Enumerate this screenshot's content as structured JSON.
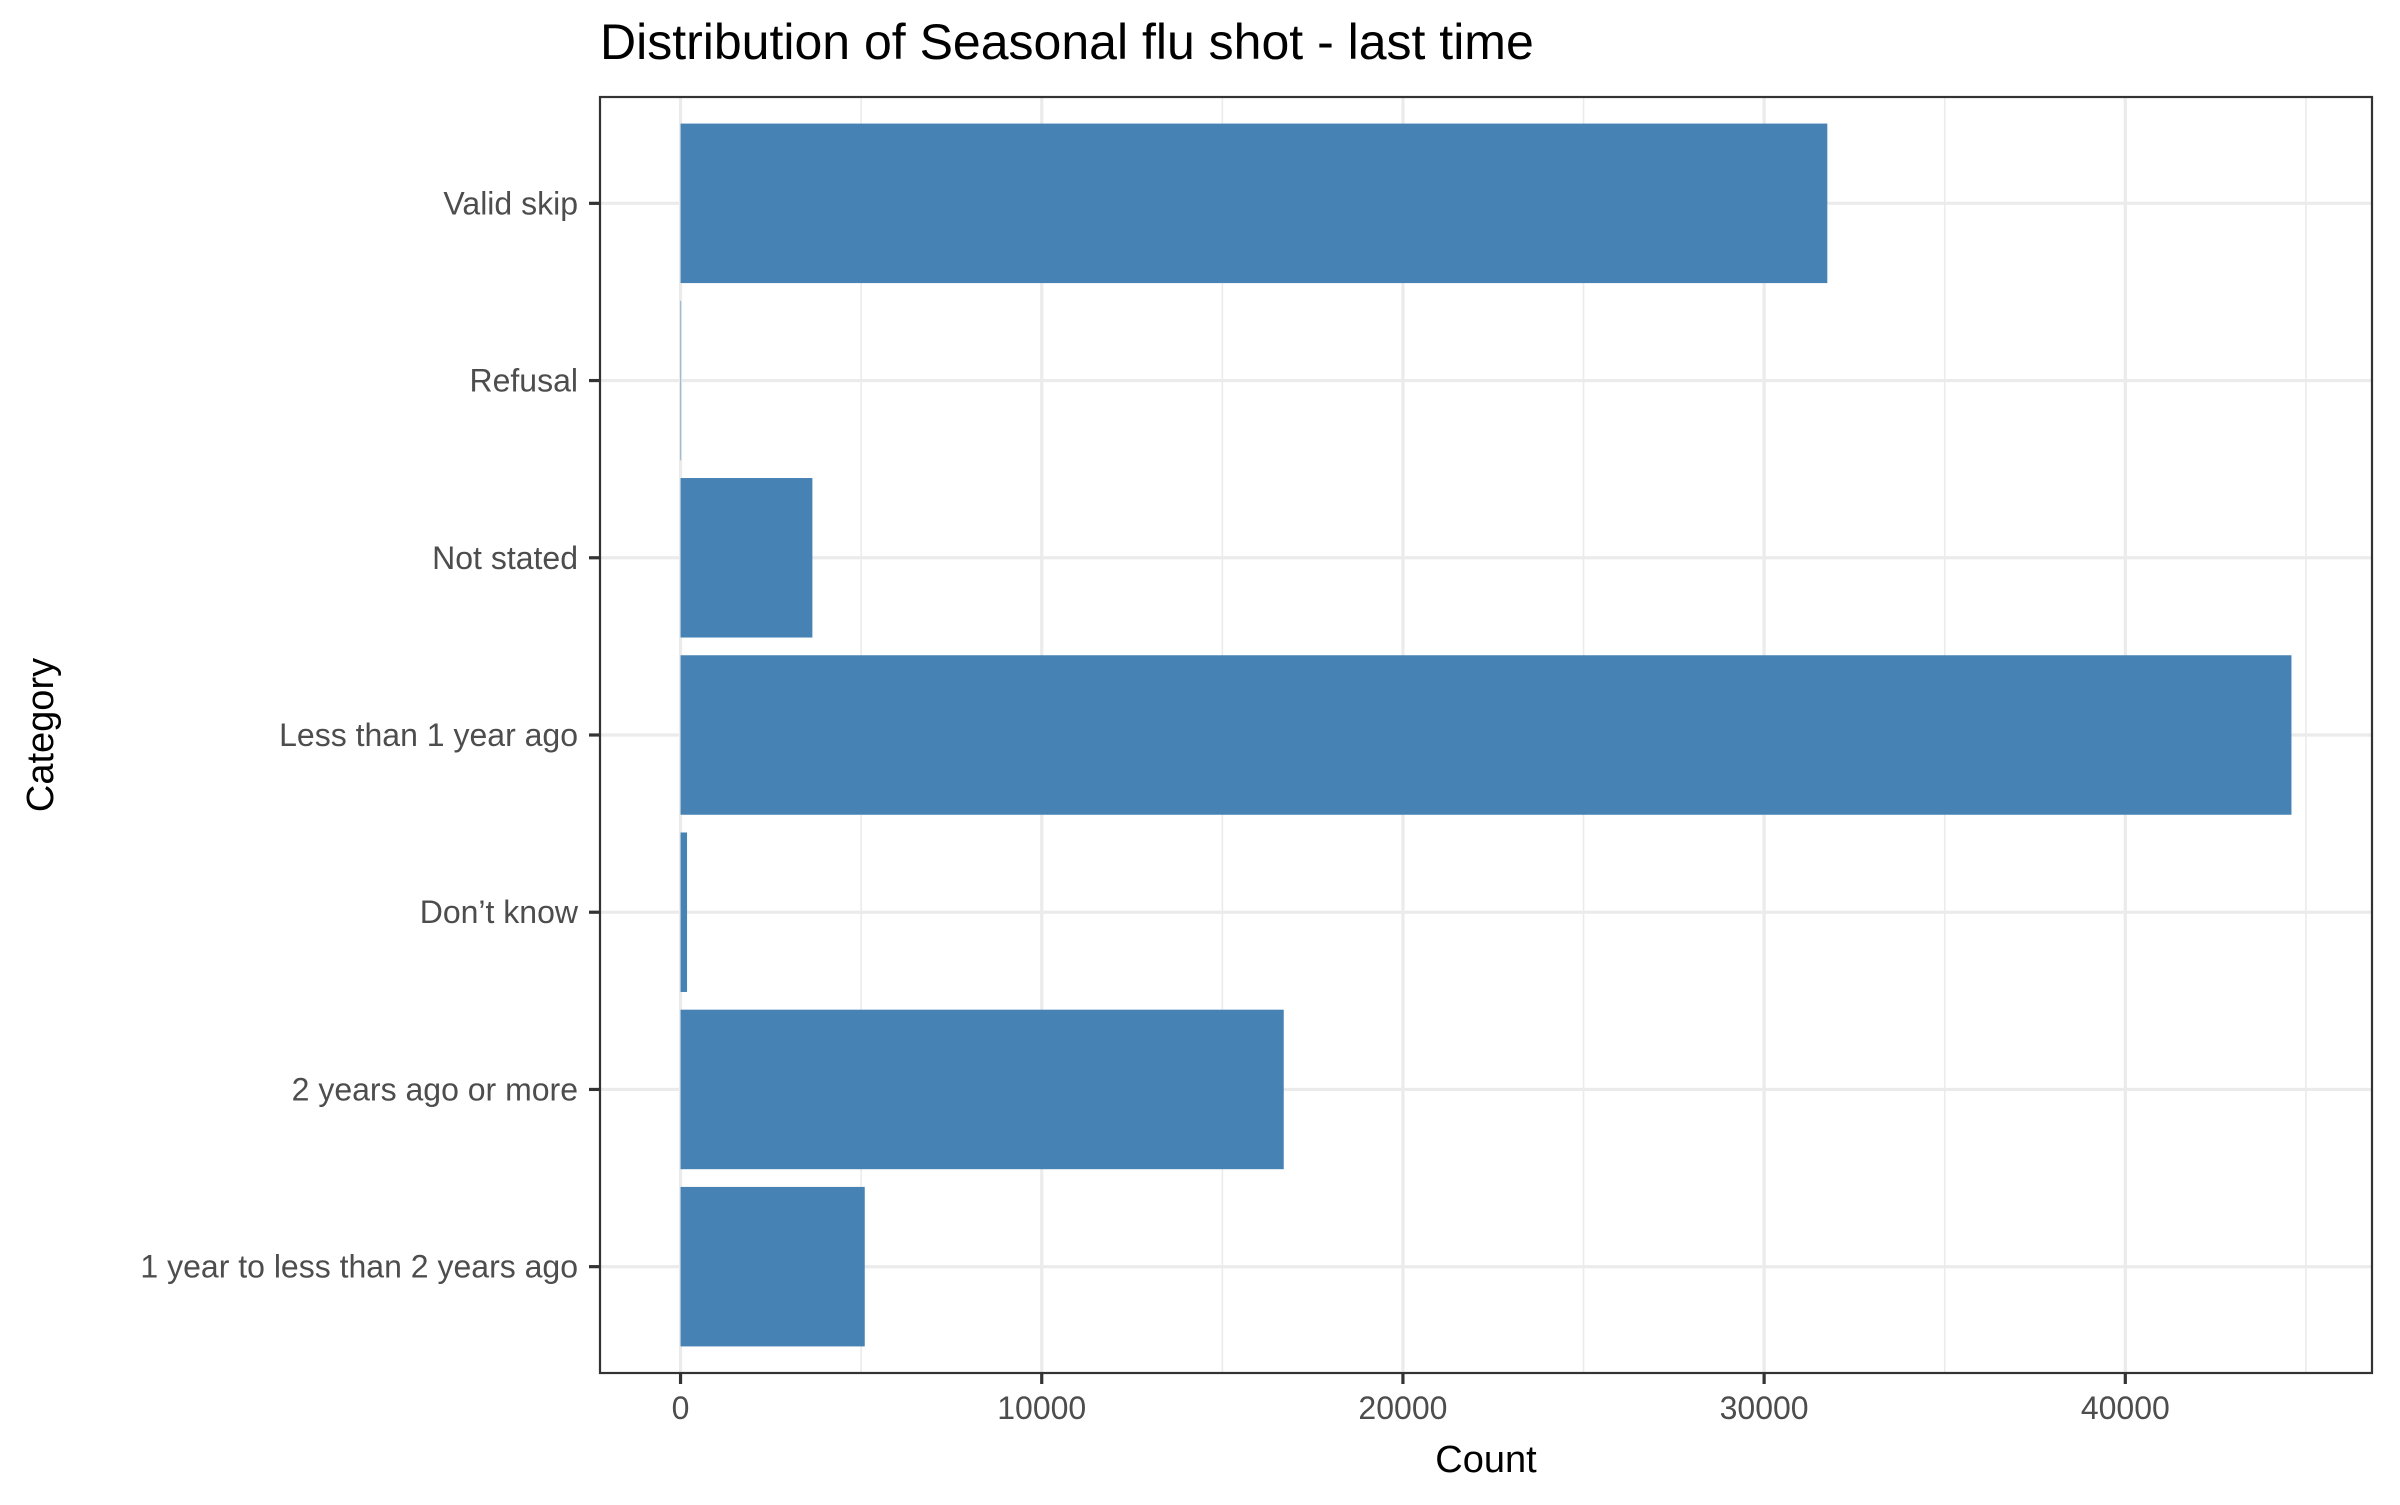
{
  "chart_data": {
    "type": "bar",
    "orientation": "horizontal",
    "title": "Distribution of Seasonal flu shot - last time",
    "xlabel": "Count",
    "ylabel": "Category",
    "categories": [
      "1 year to less than 2 years ago",
      "2 years ago or more",
      "Don’t know",
      "Less than 1 year ago",
      "Not stated",
      "Refusal",
      "Valid skip"
    ],
    "values": [
      5100,
      16700,
      180,
      44600,
      3650,
      15,
      31750
    ],
    "xlim": [
      -2230,
      46830
    ],
    "xticks": [
      0,
      10000,
      20000,
      30000,
      40000
    ],
    "xtick_labels": [
      "0",
      "10000",
      "20000",
      "30000",
      "40000"
    ],
    "bar_color": "#4682b4",
    "grid": true,
    "legend": "none"
  }
}
